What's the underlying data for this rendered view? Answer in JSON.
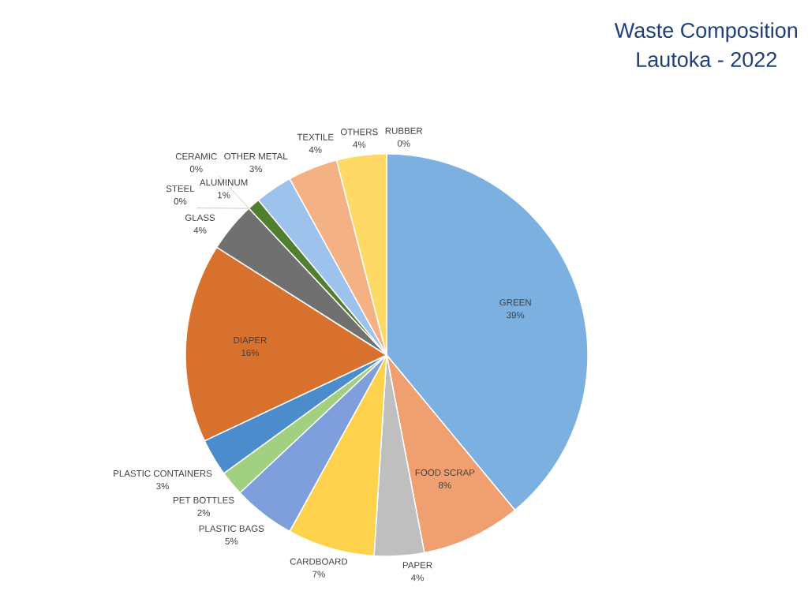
{
  "chart_data": {
    "type": "pie",
    "title": "Waste Composition",
    "subtitle": "Lautoka - 2022",
    "categories": [
      "GREEN",
      "FOOD SCRAP",
      "PAPER",
      "CARDBOARD",
      "PLASTIC BAGS",
      "PET BOTTLES",
      "PLASTIC CONTAINERS",
      "DIAPER",
      "GLASS",
      "CERAMIC",
      "STEEL",
      "ALUMINUM",
      "OTHER METAL",
      "TEXTILE",
      "OTHERS",
      "RUBBER"
    ],
    "values": [
      39,
      8,
      4,
      7,
      5,
      2,
      3,
      16,
      4,
      0,
      0,
      1,
      3,
      4,
      4,
      0
    ],
    "value_labels": [
      "39%",
      "8%",
      "4%",
      "7%",
      "5%",
      "2%",
      "3%",
      "16%",
      "4%",
      "0%",
      "0%",
      "1%",
      "3%",
      "4%",
      "4%",
      "0%"
    ],
    "colors": [
      "#7bb0e0",
      "#f0a070",
      "#bfbfbf",
      "#ffd24d",
      "#7f9fdc",
      "#a0d080",
      "#4a8ccc",
      "#d8702e",
      "#707070",
      "#a07820",
      "#2f5a9a",
      "#4f7f2f",
      "#9dc3ec",
      "#f4b183",
      "#ffd966",
      "#a6a6a6"
    ]
  }
}
